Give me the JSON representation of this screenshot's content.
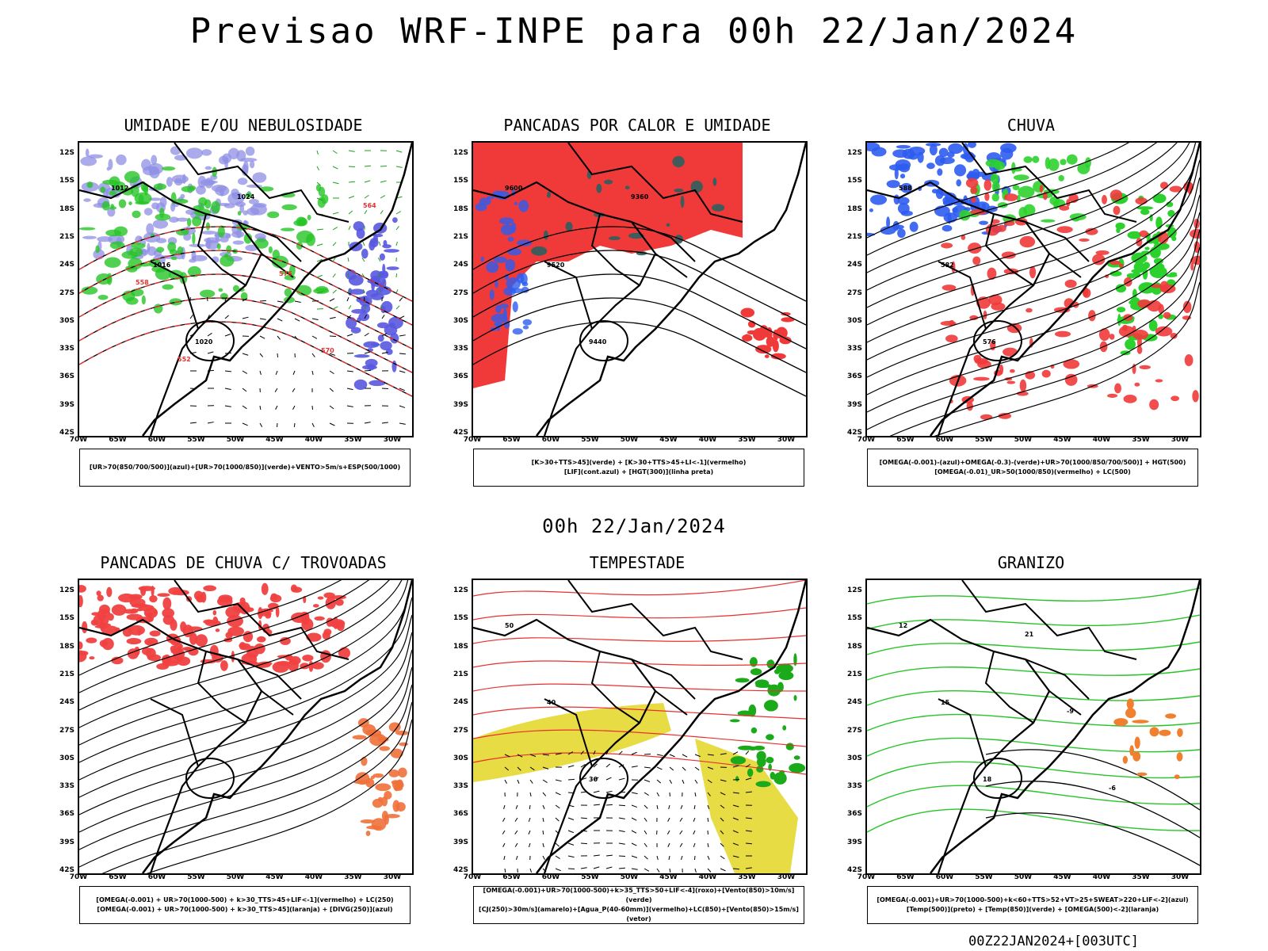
{
  "title": "Previsao WRF-INPE  para 00h 22/Jan/2024",
  "subtitle": "00h 22/Jan/2024",
  "footer": "00Z22JAN2024+[003UTC]",
  "lat_labels": [
    "12S",
    "15S",
    "18S",
    "21S",
    "24S",
    "27S",
    "30S",
    "33S",
    "36S",
    "39S",
    "42S"
  ],
  "lon_labels": [
    "70W",
    "65W",
    "60W",
    "55W",
    "50W",
    "45W",
    "40W",
    "35W",
    "30W"
  ],
  "panels": [
    {
      "title": "UMIDADE E/OU NEBULOSIDADE",
      "legend": [
        "[UR>70(850/700/500)](azul)+[UR>70(1000/850)](verde)+VENTO>5m/s+ESP(500/1000)"
      ],
      "labels": [
        "1012",
        "1016",
        "1020",
        "1024",
        "576",
        "570",
        "564",
        "558",
        "552"
      ]
    },
    {
      "title": "PANCADAS POR CALOR E UMIDADE",
      "legend": [
        "[K>30+TTS>45](verde)  +  [K>30+TTS>45+LI<-1](vermelho)",
        "[LIF](cont.azul)  +  [HGT(300)](linha preta)"
      ],
      "labels": [
        "9600",
        "9520",
        "9440",
        "9360"
      ]
    },
    {
      "title": "CHUVA",
      "legend": [
        "[OMEGA(-0.001)-(azul)+OMEGA(-0.3)-(verde)+UR>70(1000/850/700/500)]  +  HGT(500)",
        "[OMEGA(-0.01)_UR>50(1000/850)(vermelho)  +  LC(500)"
      ],
      "labels": [
        "588",
        "582",
        "576"
      ]
    },
    {
      "title": "PANCADAS DE CHUVA C/ TROVOADAS",
      "legend": [
        "[OMEGA(-0.001)  +  UR>70(1000-500)  +  k>30_TTS>45+LIF<-1](vermelho)  +  LC(250)",
        "[OMEGA(-0.001)  +  UR>70(1000-500)  +  k>30_TTS>45](laranja)  +  [DIVG(250)](azul)"
      ],
      "labels": []
    },
    {
      "title": "TEMPESTADE",
      "legend": [
        "[OMEGA(-0.001)+UR>70(1000-500)+k>35_TTS>50+LIF<-4](roxo)+[Vento(850)>10m/s](verde)",
        "[CJ(250)>30m/s](amarelo)+[Agua_P(40-60mm)](vermelho)+LC(850)+[Vento(850)>15m/s](vetor)"
      ],
      "labels": [
        "50",
        "40",
        "30"
      ]
    },
    {
      "title": "GRANIZO",
      "legend": [
        "[OMEGA(-0.001)+UR>70(1000-500)+k<60+TTS>52+VT>25+SWEAT>220+LIF<-2](azul)",
        "[Temp(500)](preto)  +  [Temp(850)](verde)  +  [OMEGA(500)<-2](laranja)"
      ],
      "labels": [
        "12",
        "15",
        "18",
        "21",
        "-9",
        "-6"
      ]
    }
  ]
}
